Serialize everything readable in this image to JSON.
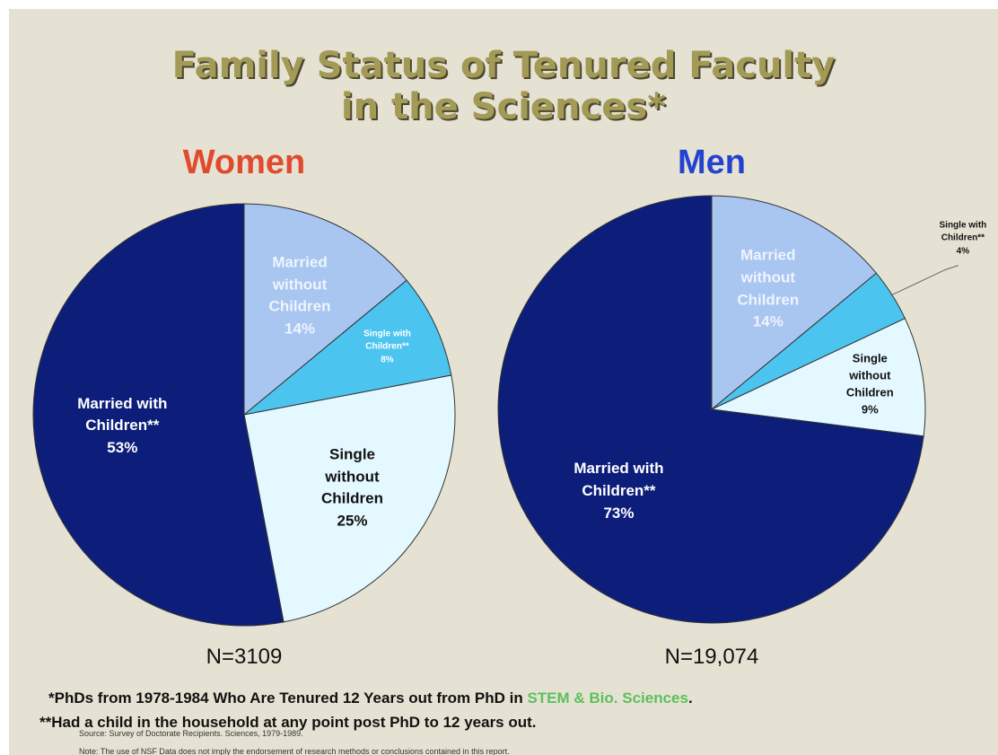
{
  "slide": {
    "title": [
      "Family Status of Tenured Faculty",
      "in the Sciences*"
    ],
    "footnote1": [
      "*PhDs from 1978-1984 Who Are Tenured 12 Years out from PhD in ",
      "STEM & Bio. Sciences",
      "."
    ],
    "footnote2": "**Had a child in the household at any point post PhD to 12 years out.",
    "source": "Source: Survey of Doctorate Recipients.  Sciences, 1979-1989.",
    "note": "Note: The use of NSF Data does not imply the endorsement of research methods or conclusions contained in this report."
  },
  "chart_data": [
    {
      "type": "pie",
      "title": "Women",
      "title_color": "#e04a2e",
      "annotation": "N=3109",
      "categories": [
        "Married without Children",
        "Single with Children**",
        "Single without Children",
        "Married with Children**"
      ],
      "values": [
        14,
        8,
        25,
        53
      ],
      "value_labels": [
        "14%",
        "8%",
        "25%",
        "53%"
      ],
      "colors": [
        "#a9c6f0",
        "#4cc4f0",
        "#e4f8ff",
        "#0d1e7a"
      ]
    },
    {
      "type": "pie",
      "title": "Men",
      "title_color": "#2442d0",
      "annotation": "N=19,074",
      "categories": [
        "Married without Children",
        "Single with Children**",
        "Single without Children",
        "Married with Children**"
      ],
      "values": [
        14,
        4,
        9,
        73
      ],
      "value_labels": [
        "14%",
        "4%",
        "9%",
        "73%"
      ],
      "colors": [
        "#a9c6f0",
        "#4cc4f0",
        "#e4f8ff",
        "#0d1e7a"
      ]
    }
  ]
}
